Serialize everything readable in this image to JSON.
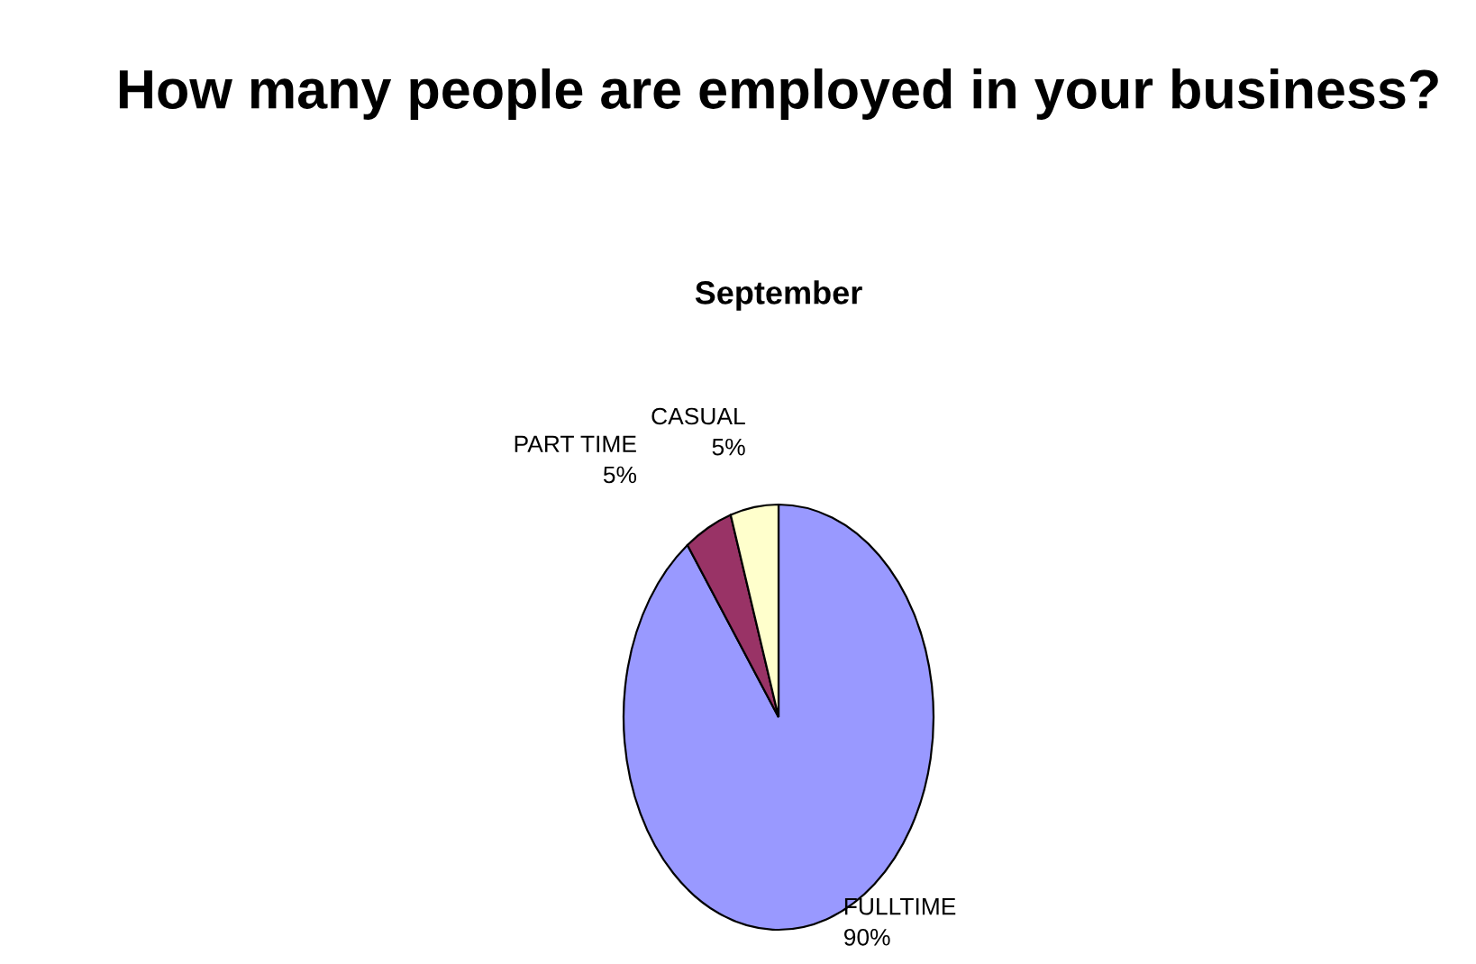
{
  "chart_data": {
    "type": "pie",
    "title": "How many people are employed in your business?",
    "subtitle": "September",
    "categories": [
      "FULLTIME",
      "PART TIME",
      "CASUAL"
    ],
    "values": [
      90,
      5,
      5
    ],
    "colors": [
      "#9999ff",
      "#993366",
      "#ffffcc"
    ],
    "value_labels": [
      "90%",
      "5%",
      "5%"
    ]
  }
}
